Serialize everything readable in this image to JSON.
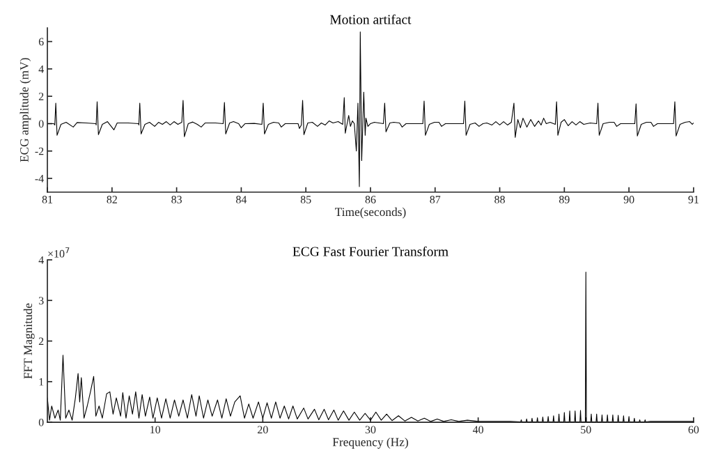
{
  "chart_data": [
    {
      "type": "line",
      "title": "Motion artifact",
      "xlabel": "Time(seconds)",
      "ylabel": "ECG amplitude (mV)",
      "xlim": [
        81,
        91
      ],
      "xticks": [
        81,
        82,
        83,
        84,
        85,
        86,
        87,
        88,
        89,
        90,
        91
      ],
      "ylim": [
        -5,
        7
      ],
      "yticks": [
        -4,
        -2,
        0,
        2,
        4,
        6
      ],
      "series": [
        {
          "color": "#000000",
          "x": [
            81.0,
            81.1,
            81.115,
            81.13,
            81.15,
            81.21,
            81.29,
            81.4,
            81.46,
            81.6,
            81.75,
            81.755,
            81.77,
            81.79,
            81.85,
            81.93,
            82.03,
            82.08,
            82.25,
            82.41,
            82.415,
            82.43,
            82.45,
            82.51,
            82.58,
            82.66,
            82.72,
            82.78,
            82.84,
            82.9,
            82.96,
            83.02,
            83.08,
            83.1,
            83.12,
            83.18,
            83.25,
            83.32,
            83.38,
            83.44,
            83.6,
            83.72,
            83.74,
            83.76,
            83.82,
            83.88,
            83.96,
            84.0,
            84.06,
            84.2,
            84.32,
            84.34,
            84.36,
            84.42,
            84.5,
            84.58,
            84.62,
            84.68,
            84.88,
            84.9,
            84.93,
            84.95,
            84.97,
            85.03,
            85.1,
            85.18,
            85.24,
            85.3,
            85.36,
            85.42,
            85.5,
            85.57,
            85.594,
            85.61,
            85.663,
            85.69,
            85.72,
            85.75,
            85.781,
            85.806,
            85.828,
            85.842,
            85.864,
            85.896,
            85.918,
            85.93,
            85.96,
            86.0,
            86.06,
            86.2,
            86.22,
            86.24,
            86.3,
            86.36,
            86.45,
            86.49,
            86.55,
            86.7,
            86.81,
            86.83,
            86.85,
            86.91,
            86.99,
            87.06,
            87.1,
            87.16,
            87.44,
            87.46,
            87.48,
            87.54,
            87.62,
            87.68,
            87.74,
            87.8,
            87.88,
            87.94,
            88.0,
            88.06,
            88.12,
            88.18,
            88.22,
            88.24,
            88.28,
            88.32,
            88.36,
            88.42,
            88.48,
            88.54,
            88.6,
            88.64,
            88.68,
            88.72,
            88.78,
            88.86,
            88.88,
            88.9,
            88.95,
            89.0,
            89.06,
            89.12,
            89.18,
            89.24,
            89.3,
            89.4,
            89.5,
            89.52,
            89.54,
            89.6,
            89.7,
            89.77,
            89.81,
            89.87,
            90.09,
            90.11,
            90.13,
            90.19,
            90.27,
            90.34,
            90.38,
            90.44,
            90.69,
            90.71,
            90.73,
            90.79,
            90.87,
            90.94,
            90.98,
            91.0
          ],
          "values": [
            0.0,
            0.0,
            -0.1,
            1.5,
            -0.85,
            -0.05,
            0.1,
            -0.25,
            0.08,
            0.05,
            0.0,
            -0.1,
            1.6,
            -0.8,
            -0.05,
            0.15,
            -0.45,
            0.05,
            0.05,
            0.0,
            -0.1,
            1.5,
            -0.75,
            -0.05,
            0.1,
            -0.2,
            0.1,
            -0.05,
            0.15,
            -0.1,
            0.15,
            -0.05,
            0.1,
            1.7,
            -0.95,
            0.0,
            0.12,
            -0.05,
            -0.25,
            0.05,
            0.05,
            0.0,
            1.55,
            -0.75,
            0.05,
            0.15,
            0.0,
            -0.3,
            0.0,
            0.02,
            -0.05,
            1.5,
            -0.75,
            -0.05,
            0.1,
            0.05,
            -0.25,
            0.0,
            0.0,
            -0.35,
            -0.1,
            1.7,
            -0.8,
            0.05,
            0.1,
            -0.2,
            0.05,
            -0.1,
            0.2,
            0.05,
            0.15,
            -0.05,
            1.9,
            -0.7,
            0.6,
            -0.2,
            0.2,
            0.0,
            -2.0,
            1.5,
            -4.6,
            6.7,
            -2.7,
            2.3,
            -0.85,
            0.4,
            -0.2,
            0.0,
            0.1,
            0.0,
            1.5,
            -0.6,
            0.05,
            0.1,
            0.05,
            -0.25,
            0.0,
            0.0,
            0.0,
            1.65,
            -0.85,
            -0.05,
            0.1,
            0.1,
            -0.2,
            0.0,
            0.0,
            1.65,
            -0.85,
            -0.05,
            0.05,
            -0.2,
            0.0,
            0.05,
            -0.1,
            0.15,
            -0.1,
            0.15,
            -0.1,
            0.1,
            1.5,
            -1.0,
            0.3,
            -0.3,
            0.4,
            -0.25,
            0.3,
            -0.2,
            0.2,
            -0.1,
            0.4,
            0.0,
            0.1,
            -0.05,
            1.6,
            -0.85,
            0.1,
            0.3,
            -0.15,
            0.15,
            -0.1,
            0.15,
            -0.05,
            0.05,
            0.0,
            1.5,
            -0.85,
            0.0,
            0.1,
            0.1,
            -0.2,
            0.0,
            0.0,
            1.45,
            -0.9,
            -0.05,
            0.1,
            0.1,
            -0.2,
            0.0,
            0.0,
            1.6,
            -0.9,
            -0.05,
            0.1,
            0.15,
            -0.05,
            0.05
          ]
        }
      ]
    },
    {
      "type": "line",
      "title": "ECG Fast Fourier Transform",
      "xlabel": "Frequency (Hz)",
      "ylabel": "FFT Magnitude",
      "annotations": [
        "×10$^{7}$"
      ],
      "xlim": [
        0,
        60
      ],
      "xticks": [
        10,
        20,
        30,
        40,
        50,
        60
      ],
      "ylim": [
        0,
        4
      ],
      "yticks": [
        0,
        1,
        2,
        3,
        4
      ],
      "series": [
        {
          "color": "#000000",
          "x": [
            0.0,
            0.2,
            0.4,
            0.7,
            1.0,
            1.2,
            1.45,
            1.7,
            2.0,
            2.3,
            2.6,
            2.85,
            3.0,
            3.15,
            3.4,
            3.7,
            4.0,
            4.3,
            4.5,
            4.8,
            5.1,
            5.5,
            5.8,
            6.1,
            6.4,
            6.8,
            7.0,
            7.3,
            7.6,
            7.9,
            8.2,
            8.5,
            8.8,
            9.1,
            9.5,
            9.8,
            10.2,
            10.6,
            11.0,
            11.4,
            11.8,
            12.2,
            12.6,
            13.0,
            13.4,
            13.8,
            14.1,
            14.5,
            14.9,
            15.3,
            15.8,
            16.2,
            16.6,
            17.0,
            17.4,
            17.9,
            18.3,
            18.7,
            19.1,
            19.6,
            20.0,
            20.4,
            20.8,
            21.2,
            21.6,
            22.0,
            22.4,
            22.8,
            23.2,
            23.8,
            24.2,
            24.8,
            25.2,
            25.7,
            26.1,
            26.6,
            27.0,
            27.5,
            28.0,
            28.5,
            29.0,
            29.5,
            30.0,
            30.5,
            31.0,
            31.5,
            32.0,
            32.6,
            33.2,
            33.8,
            34.4,
            35.0,
            35.6,
            36.2,
            36.8,
            37.5,
            38.2,
            39.0,
            40.0,
            43.0,
            43.95,
            44.0,
            44.05,
            44.45,
            44.5,
            44.55,
            44.95,
            45.0,
            45.05,
            45.45,
            45.5,
            45.55,
            45.95,
            46.0,
            46.05,
            46.45,
            46.5,
            46.55,
            46.95,
            47.0,
            47.05,
            47.45,
            47.5,
            47.55,
            47.95,
            48.0,
            48.05,
            48.45,
            48.5,
            48.55,
            48.95,
            49.0,
            49.05,
            49.45,
            49.5,
            49.55,
            49.95,
            50.0,
            50.05,
            50.45,
            50.5,
            50.55,
            50.95,
            51.0,
            51.05,
            51.45,
            51.5,
            51.55,
            51.95,
            52.0,
            52.05,
            52.45,
            52.5,
            52.55,
            52.95,
            53.0,
            53.05,
            53.45,
            53.5,
            53.55,
            53.95,
            54.0,
            54.05,
            54.45,
            54.5,
            54.55,
            54.95,
            55.0,
            55.05,
            55.45,
            55.5,
            55.55,
            56.0,
            60.0
          ],
          "values": [
            0.6,
            0.05,
            0.4,
            0.1,
            0.3,
            0.05,
            1.65,
            0.1,
            0.3,
            0.05,
            0.6,
            1.2,
            0.5,
            1.1,
            0.1,
            0.4,
            0.75,
            1.13,
            0.15,
            0.4,
            0.1,
            0.7,
            0.75,
            0.2,
            0.6,
            0.15,
            0.73,
            0.1,
            0.65,
            0.2,
            0.75,
            0.1,
            0.68,
            0.15,
            0.62,
            0.1,
            0.6,
            0.1,
            0.58,
            0.1,
            0.55,
            0.15,
            0.55,
            0.1,
            0.68,
            0.15,
            0.65,
            0.1,
            0.55,
            0.15,
            0.55,
            0.1,
            0.58,
            0.15,
            0.5,
            0.65,
            0.1,
            0.45,
            0.1,
            0.5,
            0.1,
            0.48,
            0.1,
            0.5,
            0.1,
            0.4,
            0.08,
            0.4,
            0.08,
            0.35,
            0.08,
            0.32,
            0.06,
            0.32,
            0.06,
            0.3,
            0.05,
            0.28,
            0.05,
            0.25,
            0.05,
            0.22,
            0.05,
            0.25,
            0.05,
            0.2,
            0.04,
            0.16,
            0.03,
            0.12,
            0.03,
            0.1,
            0.02,
            0.08,
            0.02,
            0.06,
            0.02,
            0.05,
            0.02,
            0.02,
            0.01,
            0.06,
            0.01,
            0.01,
            0.08,
            0.01,
            0.01,
            0.1,
            0.01,
            0.01,
            0.11,
            0.01,
            0.01,
            0.13,
            0.01,
            0.01,
            0.14,
            0.01,
            0.01,
            0.16,
            0.01,
            0.01,
            0.2,
            0.01,
            0.01,
            0.24,
            0.01,
            0.01,
            0.28,
            0.01,
            0.01,
            0.28,
            0.01,
            0.01,
            0.29,
            0.01,
            0.01,
            3.7,
            0.01,
            0.01,
            0.2,
            0.01,
            0.01,
            0.2,
            0.01,
            0.01,
            0.18,
            0.01,
            0.01,
            0.18,
            0.01,
            0.01,
            0.18,
            0.01,
            0.01,
            0.17,
            0.01,
            0.01,
            0.16,
            0.01,
            0.01,
            0.14,
            0.01,
            0.01,
            0.1,
            0.01,
            0.01,
            0.06,
            0.01,
            0.01,
            0.06,
            0.01,
            0.02,
            0.02
          ]
        }
      ]
    }
  ]
}
